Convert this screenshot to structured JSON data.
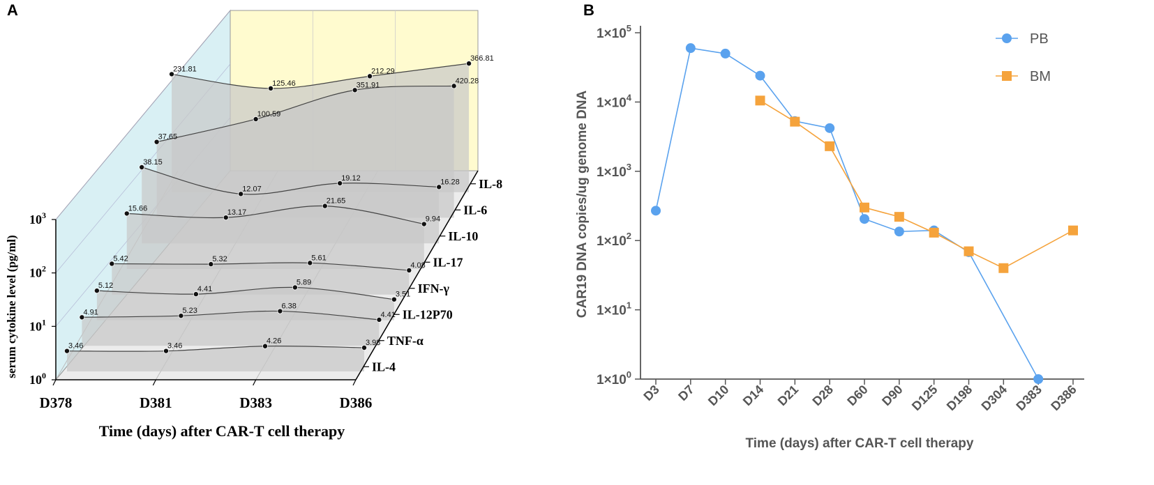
{
  "figure": {
    "panel_a_label": "A",
    "panel_b_label": "B"
  },
  "chart_data": [
    {
      "type": "line",
      "subtype": "3d-ribbon",
      "panel": "A",
      "xlabel": "Time (days) after CAR-T cell therapy",
      "ylabel": "serum cytokine level (pg/ml)",
      "yscale": "log",
      "ylim": [
        1,
        1000
      ],
      "y_ticks": [
        {
          "base": "10",
          "exp": "0"
        },
        {
          "base": "10",
          "exp": "1"
        },
        {
          "base": "10",
          "exp": "2"
        },
        {
          "base": "10",
          "exp": "3"
        }
      ],
      "categories": [
        "D378",
        "D381",
        "D383",
        "D386"
      ],
      "series": [
        {
          "name": "IL-8",
          "values": [
            231.81,
            125.46,
            212.29,
            366.81
          ],
          "labels": [
            "231.81",
            "125.46",
            "212.29",
            "366.81"
          ]
        },
        {
          "name": "IL-6",
          "values": [
            37.65,
            100.59,
            351.91,
            420.28
          ],
          "labels": [
            "37.65",
            "100.59",
            "351.91",
            "420.28"
          ]
        },
        {
          "name": "IL-10",
          "values": [
            38.15,
            12.07,
            19.12,
            16.28
          ],
          "labels": [
            "38.15",
            "12.07",
            "19.12",
            "16.28"
          ]
        },
        {
          "name": "IL-17",
          "values": [
            15.66,
            13.17,
            21.65,
            9.94
          ],
          "labels": [
            "15.66",
            "13.17",
            "21.65",
            "9.94"
          ]
        },
        {
          "name": "IFN-γ",
          "values": [
            5.42,
            5.32,
            5.61,
            4.08
          ],
          "labels": [
            "5.42",
            "5.32",
            "5.61",
            "4.08"
          ]
        },
        {
          "name": "IL-12P70",
          "values": [
            5.12,
            4.41,
            5.89,
            3.51
          ],
          "labels": [
            "5.12",
            "4.41",
            "5.89",
            "3.51"
          ]
        },
        {
          "name": "TNF-α",
          "values": [
            4.91,
            5.23,
            6.38,
            4.41
          ],
          "labels": [
            "4.91",
            "5.23",
            "6.38",
            "4.41"
          ]
        },
        {
          "name": "IL-4",
          "values": [
            3.46,
            3.46,
            4.26,
            3.98
          ],
          "labels": [
            "3.46",
            "3.46",
            "4.26",
            "3.98"
          ]
        }
      ],
      "colors": {
        "back_wall": "#fffbcf",
        "side_wall": "#d9f0f4",
        "floor": "#e9e9e9",
        "ribbon": "#c8c8c8",
        "line": "#444444",
        "point": "#111111"
      }
    },
    {
      "type": "line",
      "panel": "B",
      "xlabel": "Time (days) after  CAR-T cell therapy",
      "ylabel": "CAR19  DNA copies/ug  genome DNA",
      "yscale": "log",
      "ylim": [
        1,
        100000
      ],
      "y_ticks": [
        {
          "base": "1×10",
          "exp": "0"
        },
        {
          "base": "1×10",
          "exp": "1"
        },
        {
          "base": "1×10",
          "exp": "2"
        },
        {
          "base": "1×10",
          "exp": "3"
        },
        {
          "base": "1×10",
          "exp": "4"
        },
        {
          "base": "1×10",
          "exp": "5"
        }
      ],
      "categories": [
        "D3",
        "D7",
        "D10",
        "D14",
        "D21",
        "D28",
        "D60",
        "D90",
        "D125",
        "D198",
        "D304",
        "D383",
        "D386"
      ],
      "legend_position": "top-right",
      "series": [
        {
          "name": "PB",
          "marker": "circle",
          "color": "#5aa2ee",
          "values": [
            270,
            60000,
            50000,
            24000,
            5300,
            4200,
            205,
            135,
            140,
            68,
            null,
            1,
            null
          ]
        },
        {
          "name": "BM",
          "marker": "square",
          "color": "#f5a33c",
          "values": [
            null,
            null,
            null,
            10500,
            5200,
            2300,
            300,
            220,
            130,
            70,
            40,
            null,
            140
          ]
        }
      ]
    }
  ]
}
